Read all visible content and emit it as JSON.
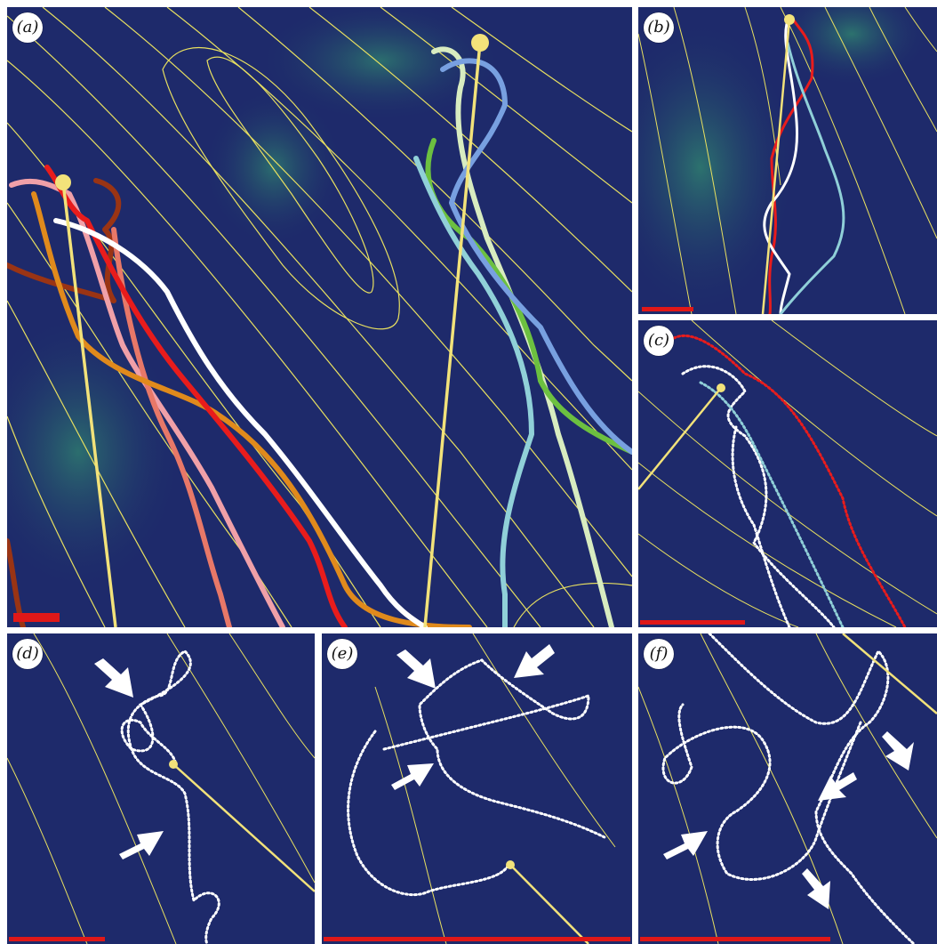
{
  "figure": {
    "panels": [
      {
        "id": "a",
        "label": "(a)",
        "scale_bar": "red"
      },
      {
        "id": "b",
        "label": "(b)",
        "scale_bar": "red"
      },
      {
        "id": "c",
        "label": "(c)",
        "scale_bar": "red"
      },
      {
        "id": "d",
        "label": "(d)",
        "scale_bar": "red"
      },
      {
        "id": "e",
        "label": "(e)",
        "scale_bar": "red"
      },
      {
        "id": "f",
        "label": "(f)",
        "scale_bar": "red"
      }
    ]
  },
  "colors": {
    "background": "#1e2a6b",
    "terrain_highlight": "#2f7f6f",
    "contour": "#e8e060",
    "tether": "#f2e27a",
    "scale_bar": "#e01818",
    "track_red": "#e81c1c",
    "track_white": "#ffffff",
    "track_orange": "#e08a1c",
    "track_pink": "#f0a0a8",
    "track_salmon": "#e87868",
    "track_brown": "#9a3414",
    "track_lightblue": "#90d0d8",
    "track_blue": "#78a0e0",
    "track_green": "#6cc040",
    "track_pale": "#d8ecc0"
  }
}
